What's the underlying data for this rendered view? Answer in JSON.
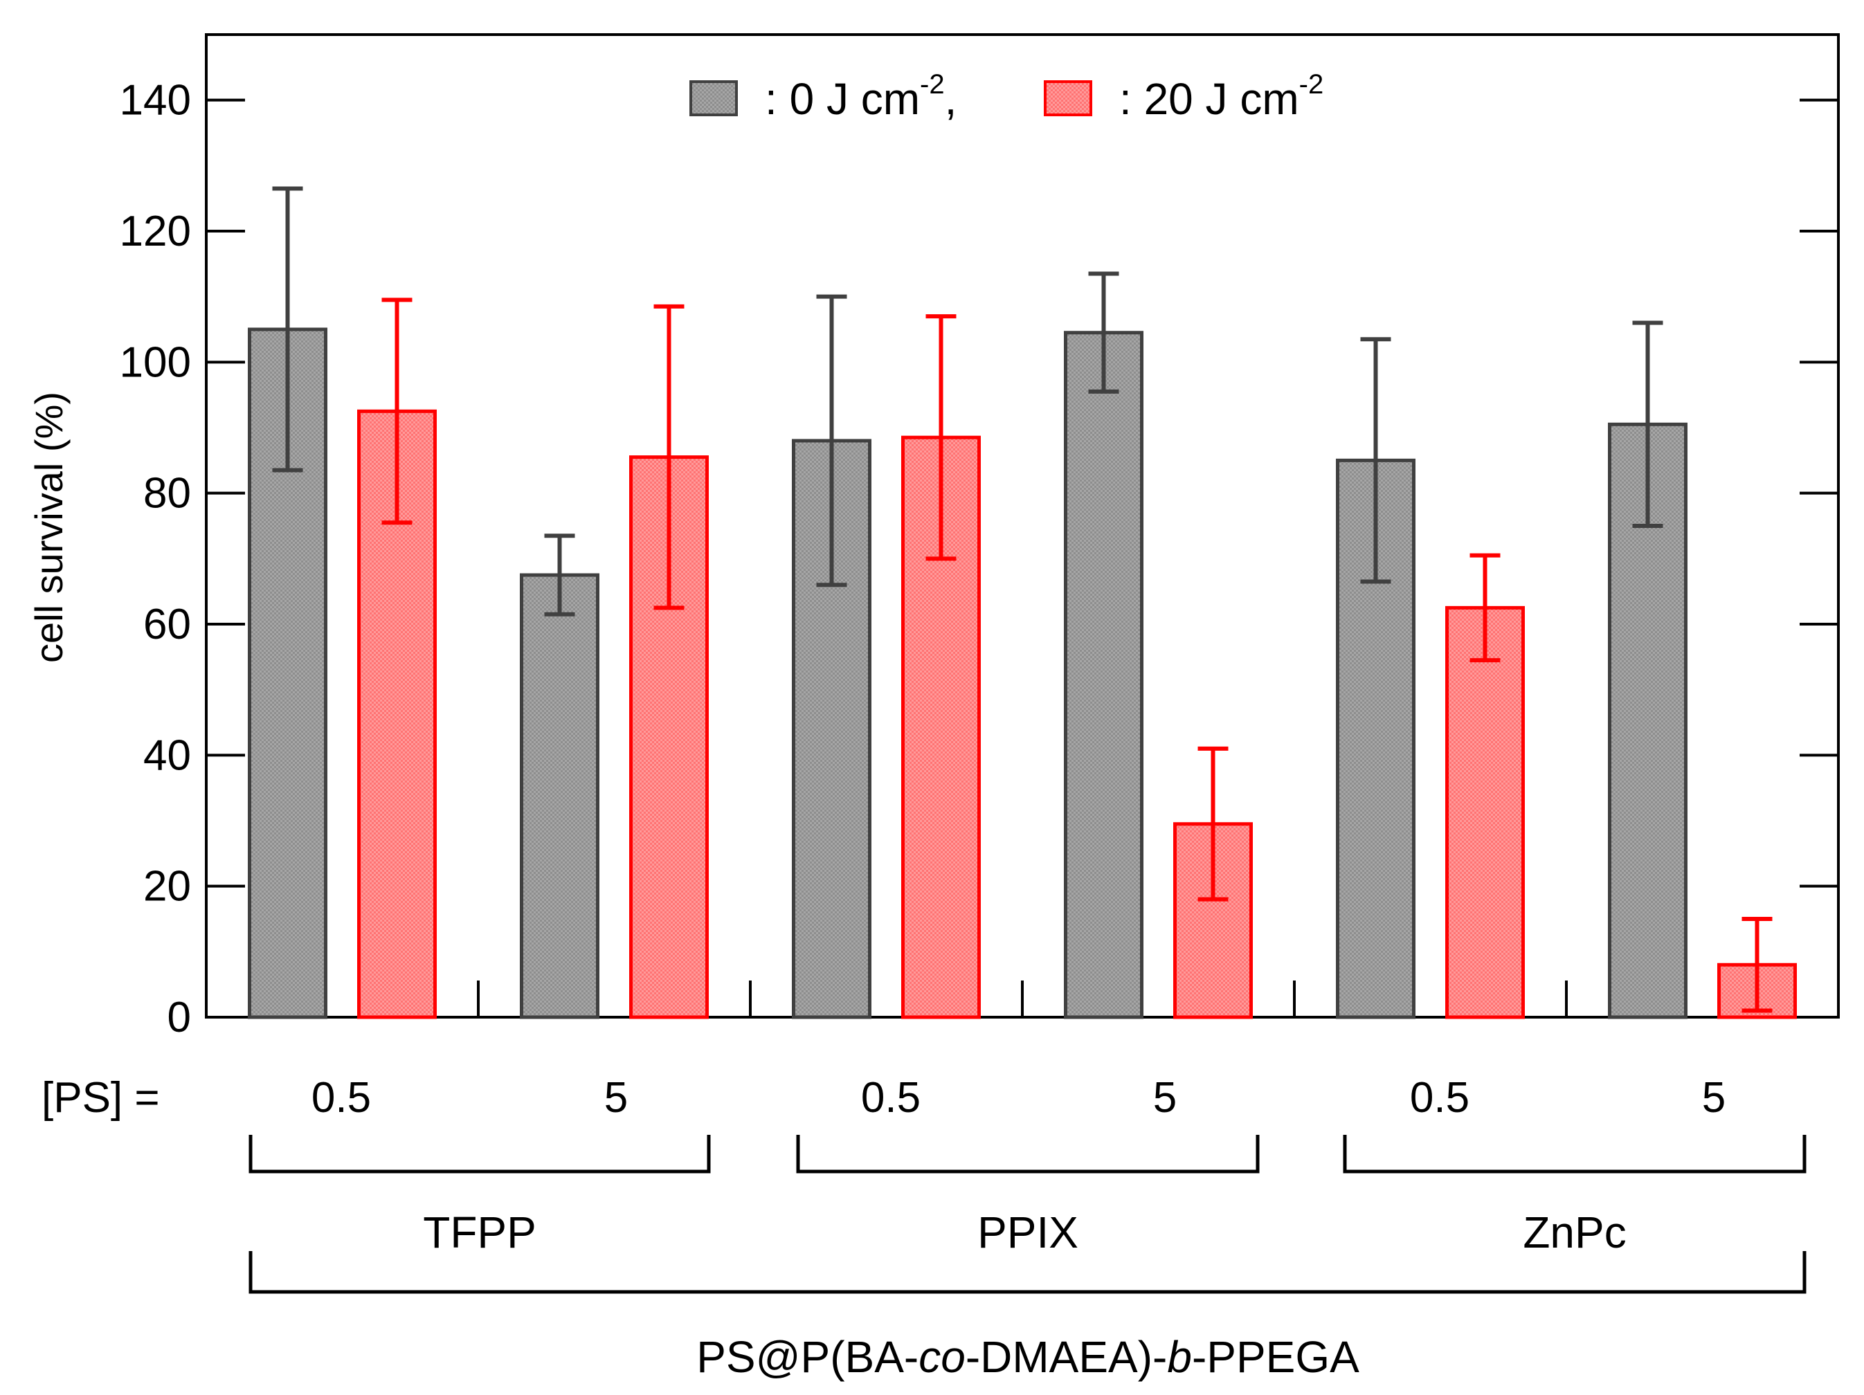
{
  "chart_data": {
    "type": "bar",
    "ylabel": "cell survival (%)",
    "ylim": [
      0,
      150
    ],
    "yticks": [
      0,
      20,
      40,
      60,
      80,
      100,
      120,
      140
    ],
    "ps_label": "[PS] =",
    "categories": [
      "0.5",
      "5",
      "0.5",
      "5",
      "0.5",
      "5"
    ],
    "groups": [
      {
        "name": "TFPP",
        "categories": [
          0,
          1
        ]
      },
      {
        "name": "PPIX",
        "categories": [
          2,
          3
        ]
      },
      {
        "name": "ZnPc",
        "categories": [
          4,
          5
        ]
      }
    ],
    "group_title": {
      "pre": "PS@P(BA-",
      "it1": "co",
      "mid": "-DMAEA)-",
      "it2": "b",
      "post": "-PPEGA"
    },
    "series": [
      {
        "name": "0 J cm-2",
        "legend": {
          "pre": ": 0 J cm",
          "sup": "-2",
          "post": ","
        },
        "fill": "#8c8c8c",
        "stroke": "#404040",
        "values": [
          105,
          67.5,
          88,
          104.5,
          85,
          90.5
        ],
        "errors": [
          21.5,
          6,
          22,
          9,
          18.5,
          15.5
        ]
      },
      {
        "name": "20 J cm-2",
        "legend": {
          "pre": ": 20 J cm",
          "sup": "-2",
          "post": ""
        },
        "fill": "#ff7a7a",
        "stroke": "#ff0000",
        "values": [
          92.5,
          85.5,
          88.5,
          29.5,
          62.5,
          8
        ],
        "errors": [
          17,
          23,
          18.5,
          11.5,
          8,
          7
        ]
      }
    ],
    "legend_position": "top-center"
  }
}
